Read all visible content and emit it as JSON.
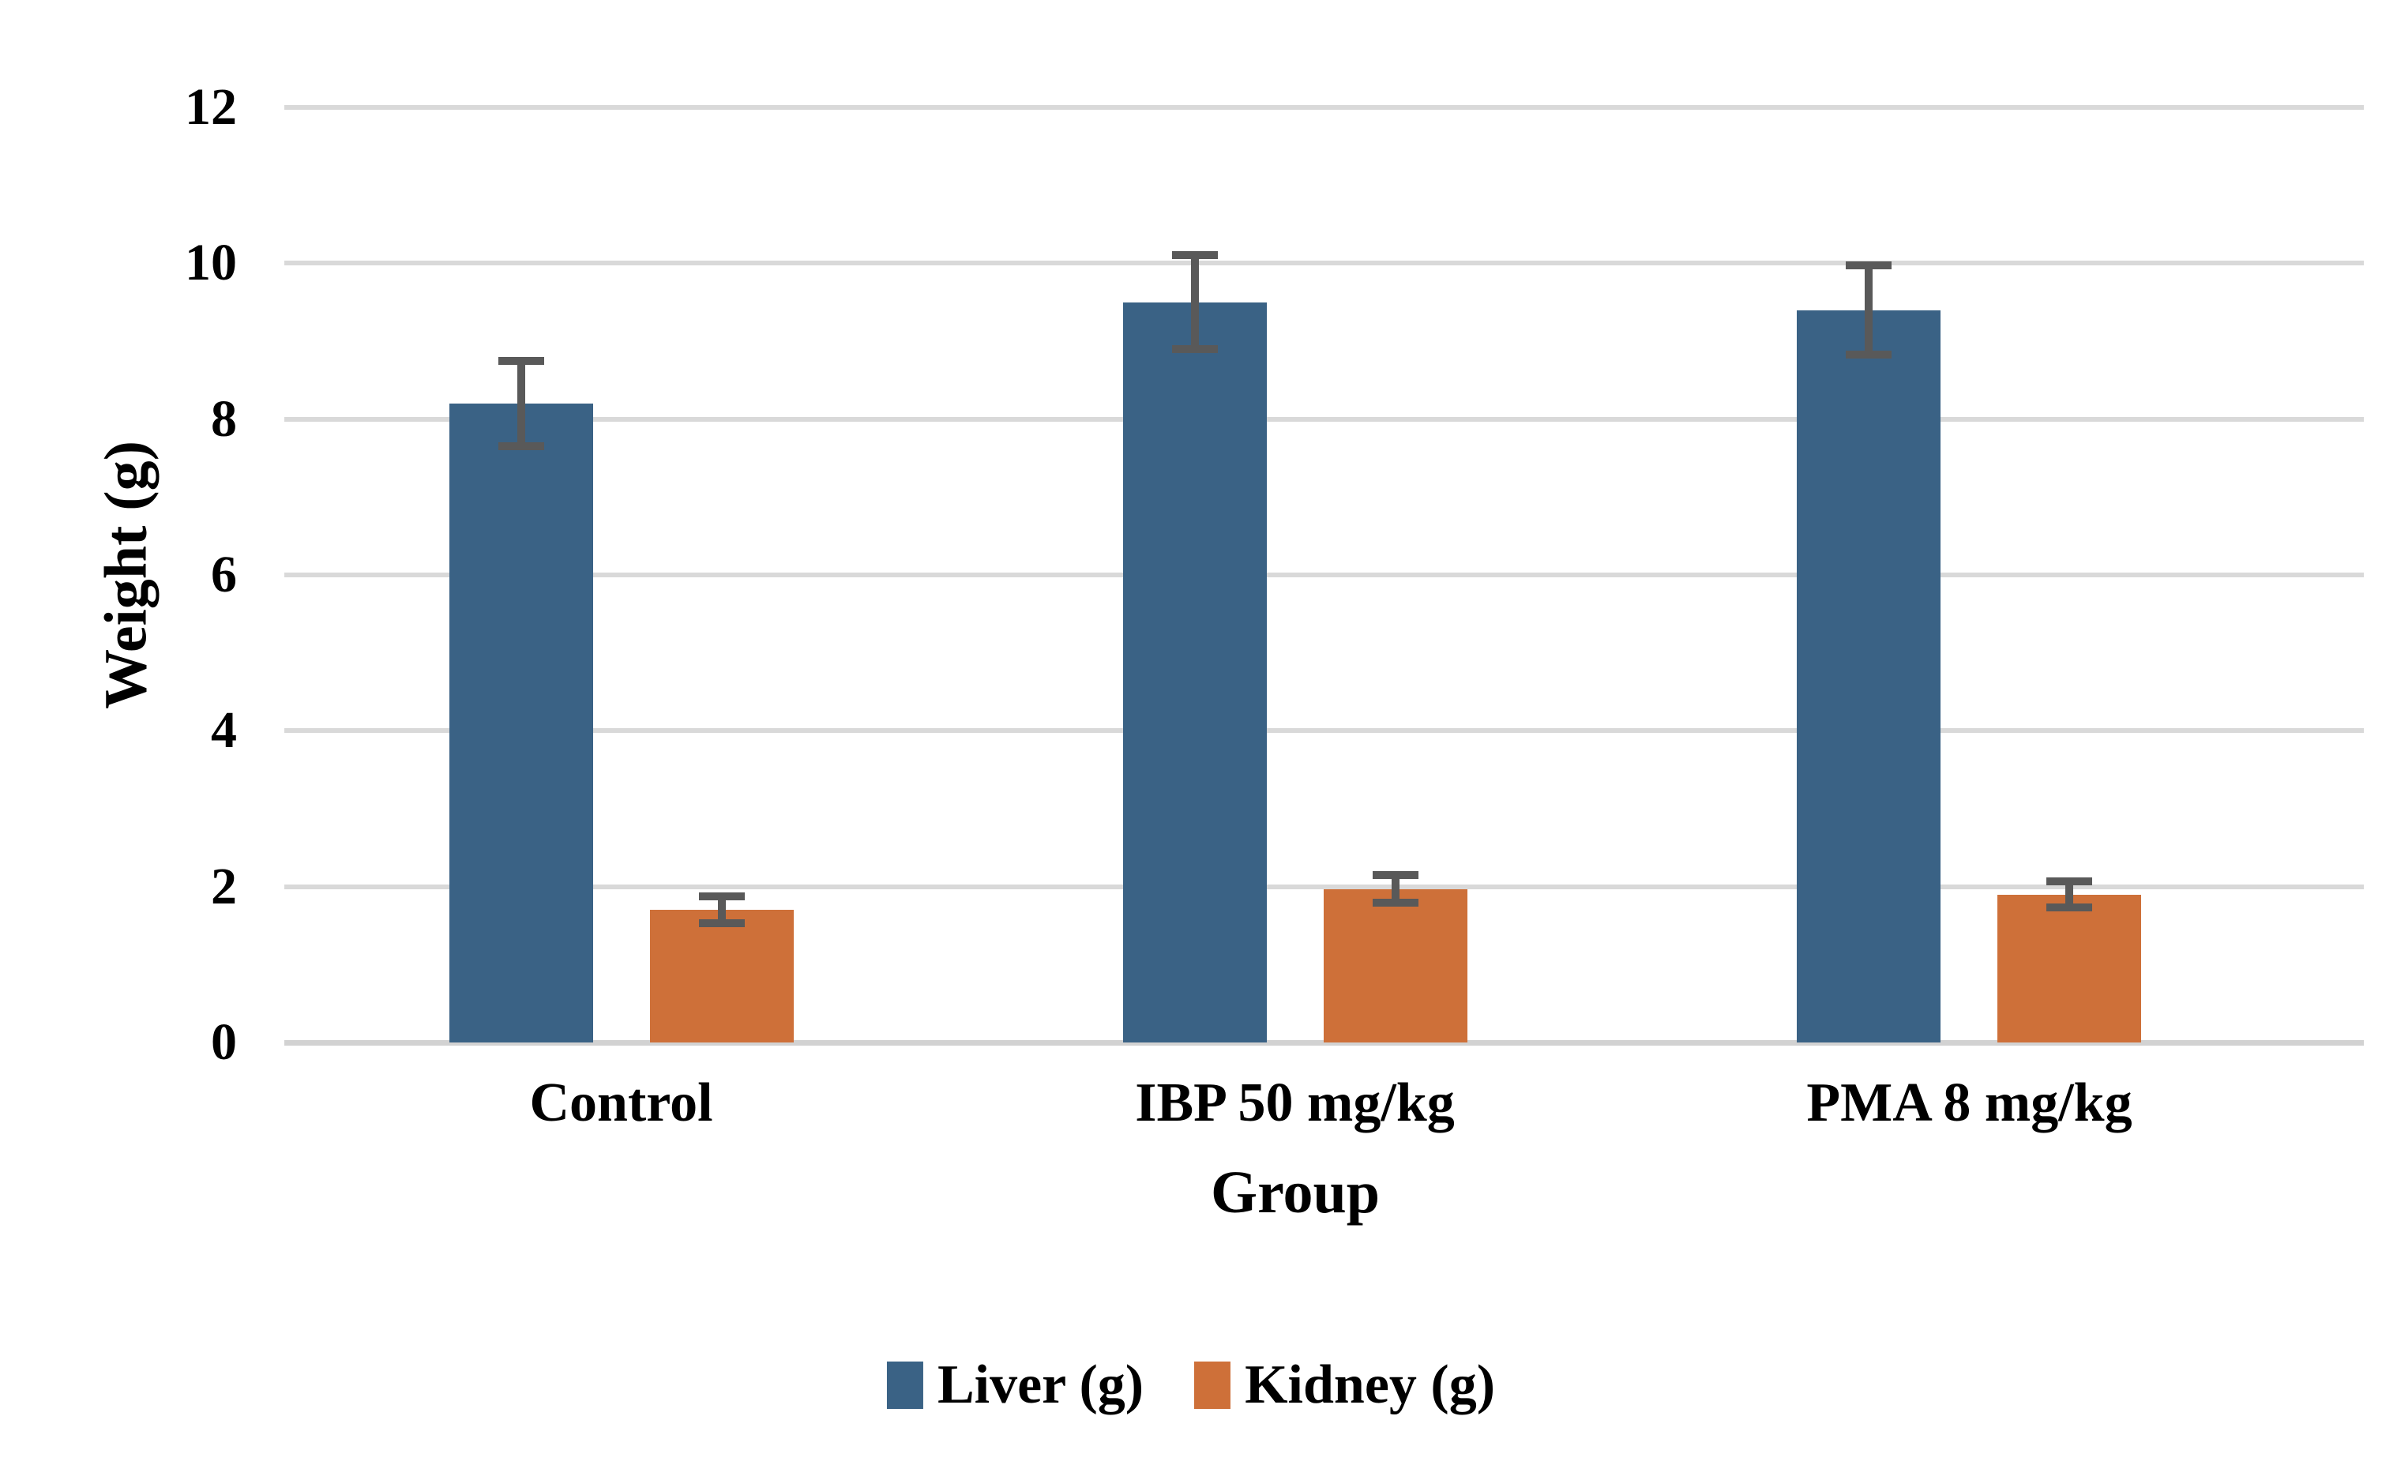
{
  "chart_data": {
    "type": "bar",
    "title": "",
    "categories": [
      "Control",
      "IBP 50 mg/kg",
      "PMA 8 mg/kg"
    ],
    "series": [
      {
        "name": "Liver (g)",
        "color": "#3A6285",
        "values": [
          8.2,
          9.5,
          9.4
        ],
        "errors": [
          0.55,
          0.6,
          0.57
        ]
      },
      {
        "name": "Kidney (g)",
        "color": "#CE7039",
        "values": [
          1.7,
          1.97,
          1.9
        ],
        "errors": [
          0.17,
          0.18,
          0.17
        ]
      }
    ],
    "xlabel": "Group",
    "ylabel": "Weight (g)",
    "ylim": [
      0,
      12
    ],
    "yticks": [
      0,
      2,
      4,
      6,
      8,
      10,
      12
    ],
    "grid": "horizontal-only",
    "legend_position": "bottom-center",
    "colors": {
      "gridline": "#D9D9D9",
      "axis_line": "#D2D2D2",
      "error_bar": "#595959",
      "text": "#000000",
      "background": "#FFFFFF"
    }
  }
}
